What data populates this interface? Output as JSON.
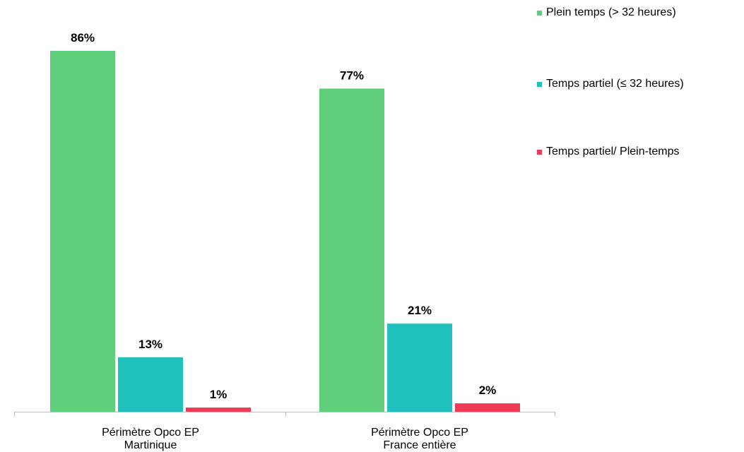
{
  "chart_data": {
    "type": "bar",
    "categories": [
      [
        "Périmètre Opco EP",
        "Martinique"
      ],
      [
        "Périmètre Opco EP",
        "France entière"
      ]
    ],
    "series": [
      {
        "name": "Plein temps (> 32 heures)",
        "values": [
          86,
          77
        ],
        "labels": [
          "86%",
          "77%"
        ],
        "color": "#5fcf7b"
      },
      {
        "name": "Temps partiel (≤ 32 heures)",
        "values": [
          13,
          21
        ],
        "labels": [
          "13%",
          "21%"
        ],
        "color": "#20c1bd"
      },
      {
        "name": "Temps partiel/ Plein-temps",
        "values": [
          1,
          2
        ],
        "labels": [
          "1%",
          "2%"
        ],
        "color": "#ee3a55"
      }
    ],
    "ylim": [
      0,
      86
    ],
    "legend_position": "top-right",
    "grid": false
  }
}
